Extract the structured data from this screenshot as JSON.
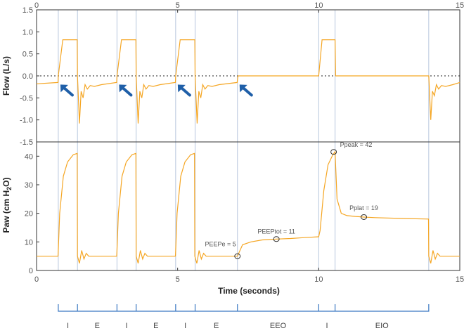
{
  "chart_data": {
    "type": "line",
    "xlabel": "Time (seconds)",
    "xlim": [
      0,
      15
    ],
    "x_ticks": [
      "0",
      "5",
      "10",
      "15"
    ],
    "top_x_ticks": [
      "0",
      "5",
      "10",
      "15"
    ],
    "colors": {
      "trace": "#f5a623",
      "arrow": "#1f5fa8",
      "bracket": "#3a78c2",
      "phase_line": "#b7c6dd",
      "frame": "#333333"
    },
    "phase_boundaries": [
      0.77,
      1.45,
      2.85,
      3.53,
      4.93,
      5.62,
      7.12,
      10.0,
      10.58,
      13.9
    ],
    "phases": [
      {
        "label": "I",
        "start": 0.77,
        "end": 1.45
      },
      {
        "label": "E",
        "start": 1.45,
        "end": 2.85
      },
      {
        "label": "I",
        "start": 2.85,
        "end": 3.53
      },
      {
        "label": "E",
        "start": 3.53,
        "end": 4.93
      },
      {
        "label": "I",
        "start": 4.93,
        "end": 5.62
      },
      {
        "label": "E",
        "start": 5.62,
        "end": 7.12
      },
      {
        "label": "EEO",
        "start": 7.12,
        "end": 10.0
      },
      {
        "label": "I",
        "start": 10.0,
        "end": 10.58
      },
      {
        "label": "EIO",
        "start": 10.58,
        "end": 13.9
      }
    ],
    "flow": {
      "ylabel": "Flow (L/s)",
      "ylim": [
        -1.5,
        1.5
      ],
      "y_ticks": [
        "-1.5",
        "-1.0",
        "-0.5",
        "0.0",
        "0.5",
        "1.0",
        "1.5"
      ],
      "zero_line": "dotted",
      "series": [
        {
          "x": [
            0,
            0.76,
            0.77,
            0.93,
            1.27,
            1.44,
            1.45,
            1.52,
            1.58,
            1.65,
            1.72,
            1.8,
            1.9,
            2.05,
            2.3,
            2.84,
            2.85,
            3.01,
            3.35,
            3.52,
            3.53,
            3.6,
            3.66,
            3.73,
            3.8,
            3.88,
            3.98,
            4.13,
            4.38,
            4.92,
            4.93,
            5.09,
            5.43,
            5.61,
            5.62,
            5.69,
            5.75,
            5.82,
            5.89,
            5.97,
            6.07,
            6.22,
            6.47,
            7.11,
            7.14,
            7.2,
            10.0,
            10.12,
            10.58,
            10.6,
            13.89,
            13.9,
            13.97,
            14.03,
            14.1,
            14.17,
            14.25,
            14.35,
            14.5,
            14.75,
            15
          ],
          "y": [
            -0.18,
            -0.15,
            0.0,
            0.82,
            0.82,
            0.82,
            0.0,
            -1.08,
            -0.35,
            -0.5,
            -0.2,
            -0.3,
            -0.22,
            -0.24,
            -0.2,
            -0.15,
            0.0,
            0.82,
            0.82,
            0.82,
            0.0,
            -1.08,
            -0.35,
            -0.5,
            -0.2,
            -0.3,
            -0.22,
            -0.24,
            -0.2,
            -0.15,
            0.0,
            0.82,
            0.82,
            0.82,
            0.0,
            -1.08,
            -0.35,
            -0.5,
            -0.2,
            -0.3,
            -0.22,
            -0.24,
            -0.2,
            -0.15,
            0.0,
            0.0,
            0.0,
            0.82,
            0.82,
            0.0,
            0.0,
            0.0,
            -1.0,
            -0.35,
            -0.45,
            -0.2,
            -0.3,
            -0.22,
            -0.24,
            -0.2,
            -0.15
          ]
        }
      ],
      "arrows_at_x": [
        0.77,
        2.85,
        4.93,
        7.12
      ]
    },
    "paw": {
      "ylabel": "Paw (cm H2O)",
      "ylim": [
        0,
        45
      ],
      "y_ticks": [
        "0",
        "10",
        "20",
        "30",
        "40"
      ],
      "series": [
        {
          "x": [
            0,
            0.76,
            0.77,
            0.82,
            0.95,
            1.1,
            1.3,
            1.44,
            1.45,
            1.52,
            1.6,
            1.68,
            1.76,
            1.85,
            2.0,
            2.84,
            2.85,
            2.9,
            3.03,
            3.18,
            3.38,
            3.52,
            3.53,
            3.6,
            3.68,
            3.76,
            3.84,
            3.93,
            4.08,
            4.92,
            4.93,
            4.98,
            5.11,
            5.26,
            5.46,
            5.6,
            5.61,
            5.68,
            5.76,
            5.84,
            5.92,
            6.01,
            6.16,
            7.11,
            7.12,
            7.3,
            7.6,
            8.0,
            8.5,
            9.0,
            9.5,
            10.0,
            10.05,
            10.18,
            10.33,
            10.5,
            10.58,
            10.65,
            10.8,
            11.0,
            11.3,
            11.6,
            12.0,
            13.0,
            13.89,
            13.9,
            13.97,
            14.05,
            14.13,
            14.21,
            14.3,
            14.45,
            15
          ],
          "y": [
            5,
            5,
            7,
            20,
            33,
            38,
            40.5,
            41,
            5,
            2.5,
            7,
            4,
            6,
            5,
            5,
            5,
            7,
            20,
            33,
            38,
            40.5,
            41,
            5,
            2.5,
            7,
            4,
            6,
            5,
            5,
            5,
            7,
            20,
            33,
            38,
            40.5,
            41,
            5,
            2.5,
            7,
            4,
            6,
            5,
            5,
            5,
            5,
            9,
            10,
            10.7,
            11,
            11.2,
            11.5,
            11.8,
            14,
            28,
            37,
            40.5,
            41.5,
            25,
            20,
            19.2,
            18.9,
            18.7,
            18.5,
            18.2,
            18,
            5,
            2.5,
            7,
            4,
            6,
            5,
            5,
            5
          ]
        }
      ],
      "annotations": [
        {
          "label": "PEEPe = 5",
          "x": 7.12,
          "y": 5
        },
        {
          "label": "PEEPtot = 11",
          "x": 8.5,
          "y": 11
        },
        {
          "label": "Ppeak = 42",
          "x": 10.53,
          "y": 41.5
        },
        {
          "label": "Pplat = 19",
          "x": 11.6,
          "y": 18.7
        }
      ]
    }
  }
}
